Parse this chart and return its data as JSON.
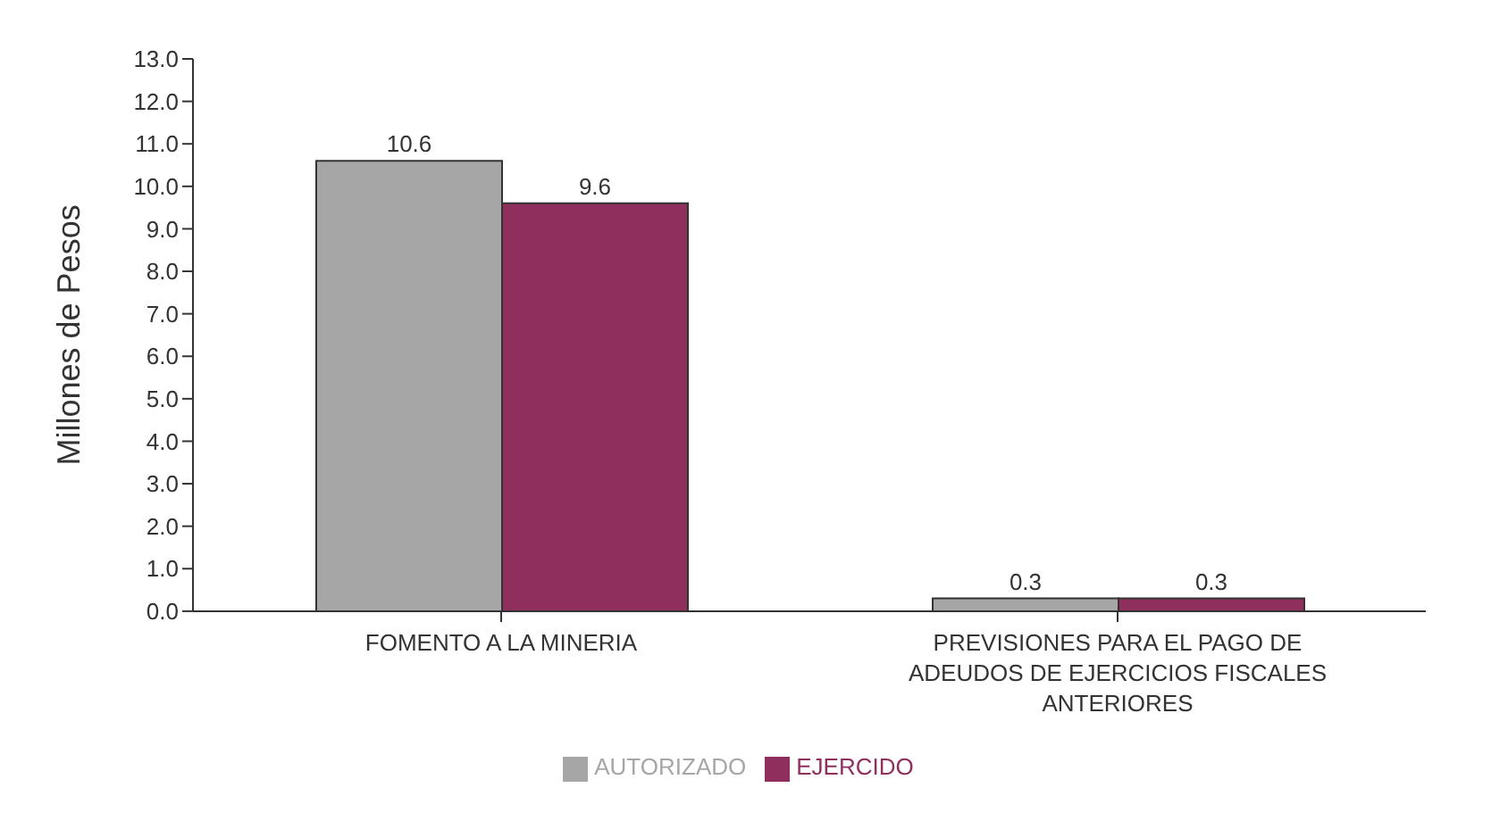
{
  "chart_data": {
    "type": "bar",
    "ylabel": "Millones de Pesos",
    "categories": [
      "FOMENTO A LA MINERIA",
      "PREVISIONES PARA EL PAGO DE ADEUDOS DE EJERCICIOS FISCALES ANTERIORES"
    ],
    "series": [
      {
        "name": "AUTORIZADO",
        "color": "#a6a6a6",
        "values": [
          10.6,
          0.3
        ]
      },
      {
        "name": "EJERCIDO",
        "color": "#8e2f5e",
        "values": [
          9.6,
          0.3
        ]
      }
    ],
    "ylim": [
      0,
      13
    ],
    "yticks": [
      {
        "value": 0,
        "label": "0.0"
      },
      {
        "value": 1,
        "label": "1.0"
      },
      {
        "value": 2,
        "label": "2.0"
      },
      {
        "value": 3,
        "label": "3.0"
      },
      {
        "value": 4,
        "label": "4.0"
      },
      {
        "value": 5,
        "label": "5.0"
      },
      {
        "value": 6,
        "label": "6.0"
      },
      {
        "value": 7,
        "label": "7.0"
      },
      {
        "value": 8,
        "label": "8.0"
      },
      {
        "value": 9,
        "label": "9.0"
      },
      {
        "value": 10,
        "label": "10.0"
      },
      {
        "value": 11,
        "label": "11.0"
      },
      {
        "value": 12,
        "label": "12.0"
      },
      {
        "value": 13,
        "label": "13.0"
      }
    ],
    "data_labels": true,
    "legend": "bottom",
    "grid": false
  }
}
